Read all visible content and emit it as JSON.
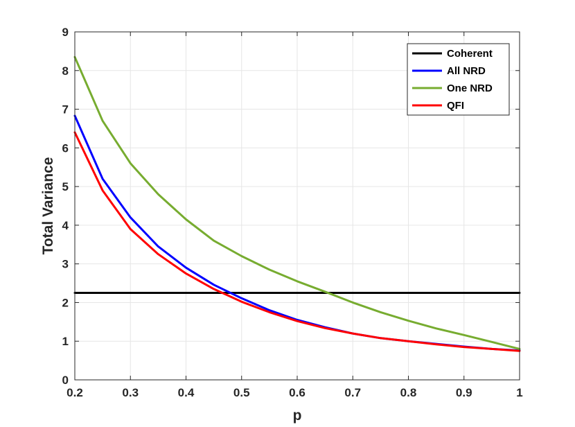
{
  "chart_data": {
    "type": "line",
    "title": "",
    "xlabel": "p",
    "ylabel": "Total Variance",
    "xlim": [
      0.2,
      1
    ],
    "ylim": [
      0,
      9
    ],
    "xticks": [
      "0.2",
      "0.3",
      "0.4",
      "0.5",
      "0.6",
      "0.7",
      "0.8",
      "0.9",
      "1"
    ],
    "yticks": [
      "0",
      "1",
      "2",
      "3",
      "4",
      "5",
      "6",
      "7",
      "8",
      "9"
    ],
    "grid": true,
    "legend_position": "top-right",
    "x": [
      0.2,
      0.25,
      0.3,
      0.35,
      0.4,
      0.45,
      0.5,
      0.55,
      0.6,
      0.65,
      0.7,
      0.75,
      0.8,
      0.85,
      0.9,
      0.95,
      1.0
    ],
    "series": [
      {
        "name": "Coherent",
        "color": "#000000",
        "values": [
          2.25,
          2.25,
          2.25,
          2.25,
          2.25,
          2.25,
          2.25,
          2.25,
          2.25,
          2.25,
          2.25,
          2.25,
          2.25,
          2.25,
          2.25,
          2.25,
          2.25
        ]
      },
      {
        "name": "All NRD",
        "color": "#0000ff",
        "values": [
          6.83,
          5.2,
          4.2,
          3.45,
          2.9,
          2.46,
          2.11,
          1.8,
          1.55,
          1.36,
          1.2,
          1.08,
          1.0,
          0.93,
          0.86,
          0.8,
          0.76
        ]
      },
      {
        "name": "One NRD",
        "color": "#77ac30",
        "values": [
          8.35,
          6.7,
          5.6,
          4.8,
          4.15,
          3.6,
          3.2,
          2.85,
          2.55,
          2.28,
          2.0,
          1.75,
          1.53,
          1.33,
          1.16,
          0.98,
          0.8
        ]
      },
      {
        "name": "QFI",
        "color": "#ff0000",
        "values": [
          6.4,
          4.9,
          3.9,
          3.25,
          2.75,
          2.35,
          2.02,
          1.75,
          1.52,
          1.34,
          1.2,
          1.08,
          1.0,
          0.92,
          0.85,
          0.8,
          0.75
        ]
      }
    ]
  }
}
